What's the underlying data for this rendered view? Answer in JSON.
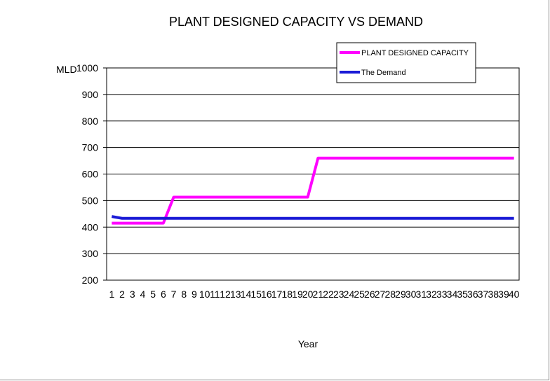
{
  "chart_data": {
    "type": "line",
    "title": "PLANT DESIGNED CAPACITY  VS  DEMAND",
    "xlabel": "Year",
    "ylabel": "MLD",
    "ylim": [
      200,
      1000
    ],
    "y_ticks": [
      200,
      300,
      400,
      500,
      600,
      700,
      800,
      900,
      1000
    ],
    "categories": [
      "1",
      "2",
      "3",
      "4",
      "5",
      "6",
      "7",
      "8",
      "9",
      "10",
      "11",
      "12",
      "13",
      "14",
      "15",
      "16",
      "17",
      "18",
      "19",
      "20",
      "21",
      "22",
      "23",
      "24",
      "25",
      "26",
      "27",
      "28",
      "29",
      "30",
      "31",
      "32",
      "33",
      "34",
      "35",
      "36",
      "37",
      "38",
      "39",
      "40"
    ],
    "grid": true,
    "legend_position": "top-right",
    "series": [
      {
        "name": "PLANT DESIGNED CAPACITY",
        "color": "#ff00ff",
        "values": [
          415,
          415,
          415,
          415,
          415,
          415,
          513,
          513,
          513,
          513,
          513,
          513,
          513,
          513,
          513,
          513,
          513,
          513,
          513,
          513,
          660,
          660,
          660,
          660,
          660,
          660,
          660,
          660,
          660,
          660,
          660,
          660,
          660,
          660,
          660,
          660,
          660,
          660,
          660,
          660
        ]
      },
      {
        "name": "The Demand",
        "color": "#1a1ad6",
        "values": [
          440,
          433,
          433,
          433,
          433,
          433,
          433,
          433,
          433,
          433,
          433,
          433,
          433,
          433,
          433,
          433,
          433,
          433,
          433,
          433,
          433,
          433,
          433,
          433,
          433,
          433,
          433,
          433,
          433,
          433,
          433,
          433,
          433,
          433,
          433,
          433,
          433,
          433,
          433,
          433
        ]
      }
    ]
  }
}
